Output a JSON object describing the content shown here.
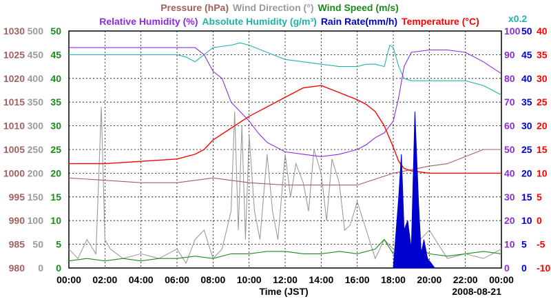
{
  "chart_data": {
    "type": "line",
    "date": "2008-08-21",
    "xlabel": "Time (JST)",
    "x_ticks": [
      "00:00",
      "02:00",
      "04:00",
      "06:00",
      "08:00",
      "10:00",
      "12:00",
      "14:00",
      "16:00",
      "18:00",
      "20:00",
      "22:00",
      "00:00"
    ],
    "grid": true,
    "legend": {
      "line1": [
        {
          "text": "Pressure (hPa)",
          "color": "#a0605f"
        },
        {
          "text": "Wind Direction (°)",
          "color": "#9a9a9a"
        },
        {
          "text": "Wind Speed (m/s)",
          "color": "#1a8a1a"
        }
      ],
      "line2": [
        {
          "text": "Relative Humidity (%)",
          "color": "#8a2be2"
        },
        {
          "text": "Absolute Humidity (g/m³)",
          "color": "#20b2aa"
        },
        {
          "text": "Rain Rate(mm/h)",
          "color": "#0000cc"
        },
        {
          "text": "Temperature (°C)",
          "color": "#ff0000"
        }
      ],
      "abs_scale_note": "x0.2"
    },
    "axes": {
      "pressure": {
        "labels": [
          "1030",
          "1025",
          "1020",
          "1015",
          "1010",
          "1005",
          "1000",
          "995",
          "990",
          "985",
          "980"
        ],
        "range": [
          980,
          1030
        ],
        "color": "#a0605f"
      },
      "wind_direction": {
        "labels": [
          "500",
          "450",
          "400",
          "350",
          "300",
          "250",
          "200",
          "150",
          "100",
          "50",
          "0"
        ],
        "range": [
          0,
          500
        ],
        "color": "#9a9a9a"
      },
      "wind_speed": {
        "labels": [
          "50",
          "45",
          "40",
          "35",
          "30",
          "25",
          "20",
          "15",
          "10",
          "5",
          "0"
        ],
        "range": [
          0,
          50
        ],
        "color": "#1a8a1a"
      },
      "humidity": {
        "labels": [
          "100",
          "90",
          "80",
          "70",
          "60",
          "50",
          "40",
          "30",
          "20",
          "10",
          "0"
        ],
        "range": [
          0,
          100
        ],
        "color": "#8a2be2"
      },
      "rain_rate": {
        "labels": [
          "50",
          "45",
          "40",
          "35",
          "30",
          "25",
          "20",
          "15",
          "10",
          "5",
          "0"
        ],
        "range": [
          0,
          50
        ],
        "color": "#0000cc"
      },
      "temperature": {
        "labels": [
          "40",
          "35",
          "30",
          "25",
          "20",
          "15",
          "10",
          "5",
          "0",
          "-5",
          "-10"
        ],
        "range": [
          -10,
          40
        ],
        "color": "#ff0000"
      }
    },
    "series": [
      {
        "name": "Pressure",
        "unit": "hPa",
        "axis": "pressure",
        "color": "#a0605f",
        "x": [
          0,
          2,
          4,
          6,
          8,
          10,
          12,
          14,
          16,
          18,
          20,
          21,
          22,
          23,
          24
        ],
        "y": [
          999,
          998.5,
          998,
          998,
          999,
          998,
          997.5,
          997.5,
          997.5,
          1000,
          1001.5,
          1002,
          1003.5,
          1005,
          1005
        ]
      },
      {
        "name": "Relative Humidity",
        "unit": "%",
        "axis": "humidity",
        "color": "#8a2be2",
        "x": [
          0,
          2,
          4,
          6,
          7,
          7.5,
          8,
          8.5,
          9,
          10,
          10.5,
          11,
          12,
          13,
          14,
          15,
          16,
          16.5,
          17,
          17.5,
          18,
          18.3,
          18.6,
          19,
          20,
          21,
          22,
          23,
          24
        ],
        "y": [
          93,
          93,
          93,
          93,
          93,
          90,
          83,
          80,
          70,
          62,
          57,
          53,
          49,
          48,
          47,
          48,
          50,
          52,
          55,
          57,
          62,
          72,
          85,
          91,
          92,
          92,
          91,
          87,
          82
        ]
      },
      {
        "name": "Absolute Humidity",
        "unit": "g/m³ (x0.2)",
        "axis": "humidity",
        "color": "#20b2aa",
        "x": [
          0,
          2,
          4,
          6,
          6.5,
          7,
          8,
          9,
          9.5,
          10,
          11,
          12,
          13,
          14,
          15,
          16,
          16.5,
          17,
          17.5,
          17.8,
          18,
          18.3,
          18.6,
          19,
          20,
          21,
          22,
          23,
          24
        ],
        "y": [
          90,
          90,
          90,
          90,
          89,
          87,
          93,
          94,
          95,
          94,
          91,
          88,
          87,
          86,
          85,
          85,
          86,
          86,
          85,
          94,
          93,
          85,
          80,
          79,
          79,
          79,
          79,
          77,
          73
        ]
      },
      {
        "name": "Temperature",
        "unit": "°C",
        "axis": "temperature",
        "color": "#ff0000",
        "x": [
          0,
          2,
          4,
          6,
          7,
          7.5,
          8,
          9,
          10,
          11,
          12,
          13,
          14,
          15,
          16,
          16.5,
          17,
          17.5,
          18,
          18.3,
          18.6,
          19,
          20,
          21,
          22,
          23,
          24
        ],
        "y": [
          12,
          12,
          12.5,
          13,
          14,
          15,
          17,
          19.5,
          22,
          24,
          26,
          28,
          28.5,
          27,
          25.5,
          24.5,
          23,
          20,
          15.5,
          12.5,
          11,
          10.5,
          10,
          10,
          10,
          10,
          10
        ]
      },
      {
        "name": "Wind Direction",
        "unit": "°",
        "axis": "wind_direction",
        "color": "#9a9a9a",
        "x": [
          0,
          0.5,
          1,
          1.5,
          1.8,
          2,
          2.3,
          3,
          4,
          5,
          6,
          6.5,
          7,
          7.5,
          8,
          8.5,
          9,
          9.2,
          9.4,
          9.6,
          9.8,
          10,
          10.3,
          10.6,
          11,
          11.3,
          11.6,
          12,
          12.3,
          12.6,
          13,
          13.3,
          13.6,
          14,
          14.3,
          14.6,
          15,
          15.3,
          15.6,
          16,
          16.5,
          17,
          17.5,
          18,
          18.5,
          19,
          19.5,
          20,
          21,
          22,
          23,
          24
        ],
        "y": [
          40,
          20,
          60,
          30,
          340,
          60,
          40,
          20,
          30,
          20,
          40,
          10,
          60,
          80,
          20,
          40,
          120,
          330,
          80,
          300,
          60,
          280,
          120,
          60,
          240,
          120,
          60,
          240,
          150,
          220,
          180,
          120,
          250,
          200,
          100,
          230,
          180,
          80,
          90,
          140,
          80,
          20,
          60,
          40,
          20,
          40,
          60,
          80,
          20,
          30,
          20,
          40
        ]
      },
      {
        "name": "Wind Speed",
        "unit": "m/s",
        "axis": "wind_speed",
        "color": "#1a8a1a",
        "x": [
          0,
          1,
          2,
          3,
          4,
          5,
          6,
          7,
          8,
          9,
          10,
          11,
          12,
          13,
          14,
          15,
          16,
          17,
          17.5,
          18,
          18.5,
          19,
          19.5,
          20,
          21,
          22,
          23,
          24
        ],
        "y": [
          1.5,
          2,
          1.5,
          2,
          1.5,
          2,
          2,
          2.5,
          2,
          3,
          3,
          3.5,
          3.5,
          3,
          3,
          3.5,
          3,
          4,
          6,
          3,
          2.5,
          3,
          4,
          3,
          2.5,
          3,
          3.5,
          3
        ]
      },
      {
        "name": "Rain Rate",
        "unit": "mm/h",
        "axis": "rain_rate",
        "color": "#0000cc",
        "x": [
          18,
          18.3,
          18.45,
          18.6,
          18.8,
          19,
          19.2,
          19.4,
          19.55,
          19.7,
          19.9,
          20.1,
          20.3
        ],
        "y": [
          0,
          15,
          24,
          8,
          10,
          4,
          33,
          14,
          3,
          6,
          2,
          1,
          0
        ]
      }
    ]
  }
}
